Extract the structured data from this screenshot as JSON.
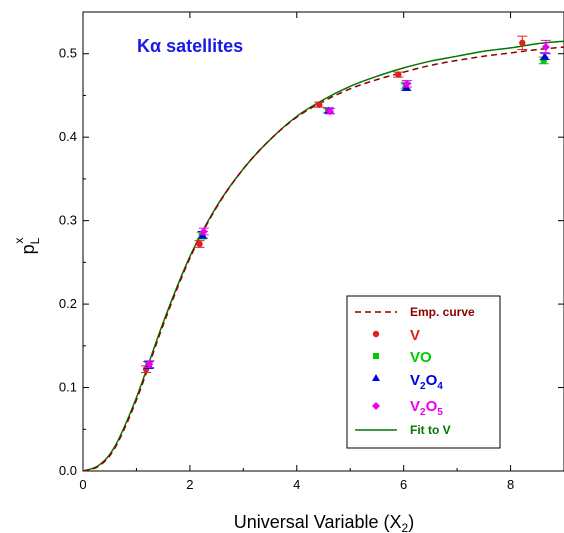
{
  "chart_data": {
    "type": "scatter",
    "annotation": "Kα satellites",
    "xlabel": "Universal Variable (X",
    "xlabel_sub": "2",
    "xlabel_close": ")",
    "ylabel": "p",
    "ylabel_sub": "L",
    "ylabel_sup": "x",
    "xlim": [
      0,
      9
    ],
    "ylim": [
      0,
      0.55
    ],
    "xticks": [
      0,
      2,
      4,
      6,
      8
    ],
    "yticks": [
      0.0,
      0.1,
      0.2,
      0.3,
      0.4,
      0.5
    ],
    "ytick_labels": [
      "0.0",
      "0.1",
      "0.2",
      "0.3",
      "0.4",
      "0.5"
    ],
    "legend_position": "bottom-right",
    "legend": {
      "emp": "Emp. curve",
      "v": "V",
      "vo": "VO",
      "v2o4_main": "V",
      "v2o4_sub1": "2",
      "v2o4_mid": "O",
      "v2o4_sub2": "4",
      "v2o5_main": "V",
      "v2o5_sub1": "2",
      "v2o5_mid": "O",
      "v2o5_sub2": "5",
      "fit": "Fit to V"
    },
    "series": [
      {
        "key": "V",
        "marker": "circle",
        "color": "#e02020",
        "points": [
          [
            1.18,
            0.122,
            0.004
          ],
          [
            2.18,
            0.272,
            0.004
          ],
          [
            4.42,
            0.439,
            0.003
          ],
          [
            5.9,
            0.475,
            0.003
          ],
          [
            8.22,
            0.513,
            0.008
          ]
        ]
      },
      {
        "key": "VO",
        "marker": "square",
        "color": "#00cc00",
        "points": [
          [
            1.22,
            0.127,
            0.004
          ],
          [
            2.22,
            0.282,
            0.004
          ],
          [
            4.58,
            0.432,
            0.003
          ],
          [
            6.04,
            0.462,
            0.004
          ],
          [
            8.62,
            0.492,
            0.004
          ]
        ]
      },
      {
        "key": "V2O4",
        "marker": "triangle",
        "color": "#0000dd",
        "points": [
          [
            1.23,
            0.127,
            0.004
          ],
          [
            2.24,
            0.283,
            0.004
          ],
          [
            4.6,
            0.432,
            0.003
          ],
          [
            6.05,
            0.46,
            0.004
          ],
          [
            8.64,
            0.497,
            0.004
          ]
        ]
      },
      {
        "key": "V2O5",
        "marker": "diamond",
        "color": "#ee00ee",
        "points": [
          [
            1.24,
            0.128,
            0.004
          ],
          [
            2.26,
            0.287,
            0.004
          ],
          [
            4.62,
            0.431,
            0.003
          ],
          [
            6.06,
            0.464,
            0.004
          ],
          [
            8.66,
            0.508,
            0.008
          ]
        ]
      }
    ],
    "curves": {
      "emp_color": "#8b0000",
      "fit_color": "#007700",
      "emp": [
        [
          0,
          0
        ],
        [
          0.3,
          0.006
        ],
        [
          0.6,
          0.028
        ],
        [
          1.0,
          0.085
        ],
        [
          1.5,
          0.175
        ],
        [
          2.0,
          0.255
        ],
        [
          2.5,
          0.316
        ],
        [
          3.0,
          0.362
        ],
        [
          3.5,
          0.397
        ],
        [
          4.0,
          0.424
        ],
        [
          4.5,
          0.443
        ],
        [
          5.0,
          0.458
        ],
        [
          5.5,
          0.469
        ],
        [
          6.0,
          0.478
        ],
        [
          6.5,
          0.486
        ],
        [
          7.0,
          0.492
        ],
        [
          7.5,
          0.497
        ],
        [
          8.0,
          0.501
        ],
        [
          8.5,
          0.505
        ],
        [
          9.0,
          0.508
        ]
      ],
      "fit": [
        [
          0,
          0
        ],
        [
          0.3,
          0.007
        ],
        [
          0.6,
          0.03
        ],
        [
          1.0,
          0.088
        ],
        [
          1.5,
          0.178
        ],
        [
          2.0,
          0.257
        ],
        [
          2.5,
          0.317
        ],
        [
          3.0,
          0.362
        ],
        [
          3.5,
          0.397
        ],
        [
          4.0,
          0.425
        ],
        [
          4.5,
          0.445
        ],
        [
          5.0,
          0.461
        ],
        [
          5.5,
          0.473
        ],
        [
          6.0,
          0.483
        ],
        [
          6.5,
          0.491
        ],
        [
          7.0,
          0.497
        ],
        [
          7.5,
          0.503
        ],
        [
          8.0,
          0.507
        ],
        [
          8.5,
          0.512
        ],
        [
          9.0,
          0.515
        ]
      ]
    }
  }
}
